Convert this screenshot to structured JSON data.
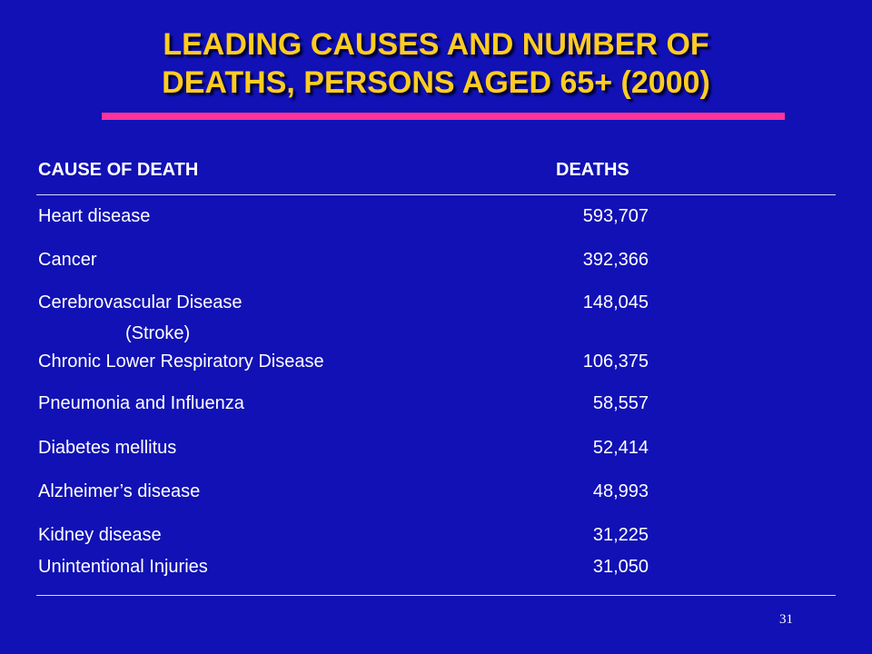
{
  "slide": {
    "title_line1": "LEADING CAUSES AND NUMBER OF",
    "title_line2": "DEATHS, PERSONS AGED 65+ (2000)",
    "page_number": "31",
    "colors": {
      "background": "#1111b5",
      "title": "#ffcc22",
      "accent_rule": "#ff3399",
      "text": "#ffffff"
    }
  },
  "table": {
    "headers": {
      "cause": "CAUSE OF DEATH",
      "deaths": "DEATHS"
    },
    "rows": [
      {
        "cause": "Heart disease",
        "deaths": "593,707"
      },
      {
        "cause": "Cancer",
        "deaths": "392,366"
      },
      {
        "cause": "Cerebrovascular Disease",
        "deaths": "148,045",
        "note": "(Stroke)"
      },
      {
        "cause": "Chronic Lower Respiratory Disease",
        "deaths": "106,375"
      },
      {
        "cause": "Pneumonia and Influenza",
        "deaths": "58,557"
      },
      {
        "cause": "Diabetes mellitus",
        "deaths": "52,414"
      },
      {
        "cause": "Alzheimer’s disease",
        "deaths": "48,993"
      },
      {
        "cause": "Kidney disease",
        "deaths": "31,225"
      },
      {
        "cause": "Unintentional Injuries",
        "deaths": "31,050"
      }
    ]
  }
}
